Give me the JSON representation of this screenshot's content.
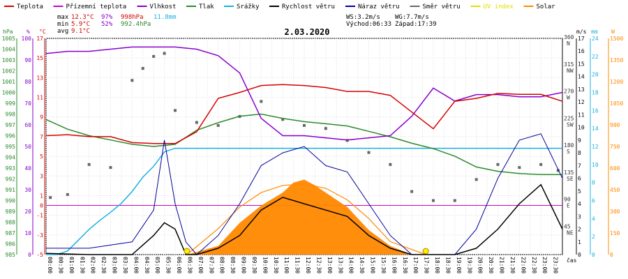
{
  "legend": [
    {
      "label": "Teplota",
      "color": "#d40000"
    },
    {
      "label": "Přízemní teplota",
      "color": "#cc00cc"
    },
    {
      "label": "Vlhkost",
      "color": "#8800cc"
    },
    {
      "label": "Tlak",
      "color": "#2a8a2a"
    },
    {
      "label": "Srážky",
      "color": "#1ab0e0"
    },
    {
      "label": "Rychlost větru",
      "color": "#000000"
    },
    {
      "label": "Náraz větru",
      "color": "#000099"
    },
    {
      "label": "Směr větru",
      "color": "#666666"
    },
    {
      "label": "UV index",
      "color": "#e0e000"
    },
    {
      "label": "Solar",
      "color": "#ff8800"
    }
  ],
  "stats": {
    "max_label": "max",
    "max_temp": "12.3°C",
    "max_hum": "97%",
    "max_press": "998hPa",
    "rain_total": "11.8mm",
    "min_label": "min",
    "min_temp": "5.9°C",
    "min_hum": "52%",
    "min_press": "992.4hPa",
    "avg_label": "avg",
    "avg_temp": "9.1°C"
  },
  "wind": {
    "ws": "WS:3.2m/s",
    "wg": "WG:7.7m/s",
    "sunrise": "Východ:06:33",
    "sunset": "Západ:17:39"
  },
  "chart_data": {
    "type": "line",
    "title": "2.03.2020",
    "xlabel": "čas",
    "time_ticks": [
      "00:00",
      "00:30",
      "01:00",
      "01:30",
      "02:00",
      "02:30",
      "03:00",
      "03:30",
      "04:00",
      "04:30",
      "05:00",
      "05:30",
      "06:00",
      "06:30",
      "07:00",
      "07:30",
      "08:00",
      "08:30",
      "09:00",
      "09:30",
      "10:00",
      "10:30",
      "11:00",
      "11:30",
      "12:00",
      "12:30",
      "13:00",
      "13:30",
      "14:00",
      "14:30",
      "15:00",
      "15:30",
      "16:00",
      "16:30",
      "17:00",
      "17:30",
      "18:00",
      "18:30",
      "19:00",
      "19:30",
      "20:00",
      "20:30",
      "21:00",
      "21:30",
      "22:00",
      "22:30",
      "23:00",
      "23:30"
    ],
    "axes": {
      "pressure": {
        "unit": "hPa",
        "ticks": [
          985,
          986,
          987,
          988,
          989,
          990,
          991,
          992,
          993,
          994,
          995,
          996,
          997,
          998,
          999,
          1000,
          1001,
          1002,
          1003,
          1004,
          1005
        ],
        "color": "#2a8a2a"
      },
      "humidity": {
        "unit": "%",
        "ticks": [
          0,
          10,
          20,
          30,
          40,
          50,
          60,
          70,
          80,
          90,
          100
        ],
        "color": "#8800cc"
      },
      "temperature": {
        "unit": "°C",
        "ticks": [
          -5,
          -3,
          -1,
          0,
          1,
          3,
          5,
          7,
          9,
          11,
          13,
          15,
          17
        ],
        "color": "#d40000"
      },
      "wind_direction": {
        "ticks": [
          "360 N",
          "315 NW",
          "270 W",
          "225 SW",
          "180 S",
          "135 SE",
          "90 E",
          "45 NE"
        ]
      },
      "wind_speed": {
        "unit": "m/s",
        "ticks": [
          0,
          1,
          2,
          3,
          4,
          5,
          6,
          7,
          8,
          9,
          10,
          11,
          12,
          13,
          14,
          15,
          16,
          17
        ]
      },
      "rain": {
        "unit": "mm",
        "ticks": [
          0,
          2,
          4,
          6,
          8,
          10,
          12,
          14,
          16,
          18,
          20,
          22,
          24
        ],
        "color": "#1ab0e0"
      },
      "uv_solar": {
        "unit": "W",
        "ticks": [
          0,
          150,
          300,
          450,
          600,
          750,
          900,
          1050,
          1200,
          1350,
          1500
        ],
        "color": "#ff8800"
      }
    },
    "series": [
      {
        "name": "Teplota",
        "unit": "°C",
        "x": [
          0,
          1,
          2,
          3,
          4,
          5,
          6,
          7,
          8,
          9,
          10,
          11,
          12,
          13,
          14,
          15,
          16,
          17,
          18,
          19,
          20,
          21,
          22,
          23,
          24
        ],
        "values": [
          7.1,
          7.2,
          7.0,
          7.0,
          6.4,
          6.3,
          6.3,
          7.5,
          10.9,
          11.5,
          12.2,
          12.3,
          12.2,
          12.0,
          11.6,
          11.6,
          11.2,
          9.5,
          7.8,
          10.6,
          10.9,
          11.4,
          11.3,
          11.3,
          10.6
        ]
      },
      {
        "name": "Vlhkost",
        "unit": "%",
        "x": [
          0,
          1,
          2,
          3,
          4,
          5,
          6,
          7,
          8,
          9,
          10,
          11,
          12,
          13,
          14,
          15,
          16,
          17,
          18,
          19,
          20,
          21,
          22,
          23,
          24
        ],
        "values": [
          93,
          94,
          94,
          95,
          96,
          96,
          96,
          95,
          92,
          84,
          63,
          55,
          55,
          54,
          53,
          54,
          55,
          64,
          77,
          71,
          74,
          74,
          73,
          73,
          75
        ]
      },
      {
        "name": "Tlak",
        "unit": "hPa",
        "x": [
          0,
          1,
          2,
          3,
          4,
          5,
          6,
          7,
          8,
          9,
          10,
          11,
          12,
          13,
          14,
          15,
          16,
          17,
          18,
          19,
          20,
          21,
          22,
          23,
          24
        ],
        "values": [
          997.5,
          996.6,
          996.0,
          995.6,
          995.2,
          995.0,
          995.2,
          996.5,
          997.2,
          997.8,
          998.0,
          997.6,
          997.3,
          997.1,
          996.9,
          996.4,
          995.9,
          995.3,
          994.8,
          994.1,
          993.1,
          992.7,
          992.5,
          992.4,
          992.4
        ]
      },
      {
        "name": "Srážky",
        "unit": "mm",
        "x": [
          0,
          0.5,
          1,
          1.5,
          2,
          2.5,
          3,
          3.5,
          4,
          4.5,
          5,
          5.5,
          6,
          6.5,
          7,
          8,
          24
        ],
        "values": [
          0,
          0,
          0.4,
          1.6,
          2.8,
          3.8,
          4.7,
          5.7,
          7.0,
          8.6,
          9.8,
          11.4,
          11.8,
          11.8,
          11.8,
          11.8,
          11.8
        ]
      },
      {
        "name": "Rychlost větru",
        "unit": "m/s",
        "x": [
          0,
          2,
          4,
          5,
          5.5,
          6,
          6.5,
          7,
          8,
          9,
          10,
          11,
          12,
          13,
          14,
          15,
          16,
          17,
          18,
          19,
          20,
          21,
          22,
          23,
          24
        ],
        "values": [
          0.1,
          0,
          0,
          1.5,
          2.5,
          2.0,
          0,
          0,
          0.5,
          1.5,
          3.5,
          4.5,
          4.0,
          3.5,
          3.0,
          1.5,
          0.5,
          0,
          0,
          0,
          0.5,
          2.0,
          4.0,
          5.5,
          2.0
        ]
      },
      {
        "name": "Náraz větru",
        "unit": "m/s",
        "x": [
          0,
          2,
          4,
          5,
          5.5,
          6,
          6.5,
          7,
          8,
          9,
          10,
          11,
          12,
          13,
          14,
          15,
          16,
          17,
          18,
          19,
          20,
          21,
          22,
          23,
          24
        ],
        "values": [
          0.5,
          0.5,
          1.0,
          3.5,
          9.0,
          4.0,
          1.0,
          0,
          1.5,
          4.0,
          7.0,
          8.0,
          8.5,
          7.0,
          6.5,
          4.0,
          1.5,
          0,
          0,
          0,
          2.0,
          6.0,
          9.0,
          9.5,
          6.0
        ]
      },
      {
        "name": "Směr větru",
        "unit": "°",
        "x": [
          0.2,
          1,
          2,
          3,
          4,
          4.5,
          5,
          5.5,
          6,
          7,
          8,
          9,
          10,
          11,
          12,
          13,
          14,
          15,
          16,
          17,
          18,
          19,
          20,
          21,
          22,
          23,
          23.8
        ],
        "values": [
          95,
          100,
          150,
          145,
          290,
          310,
          330,
          335,
          240,
          220,
          215,
          230,
          255,
          225,
          215,
          210,
          190,
          170,
          150,
          105,
          90,
          90,
          125,
          150,
          145,
          150,
          140
        ]
      },
      {
        "name": "Solar",
        "unit": "W",
        "x": [
          6.55,
          8,
          9,
          10,
          11,
          12,
          13,
          14,
          15,
          16,
          17.65
        ],
        "values": [
          0,
          180,
          330,
          430,
          480,
          490,
          460,
          380,
          250,
          90,
          0
        ]
      },
      {
        "name": "Solar measured",
        "unit": "W",
        "x": [
          6.55,
          8,
          9,
          10,
          11,
          11.5,
          12,
          12.5,
          13,
          14,
          15,
          16,
          17
        ],
        "values": [
          0,
          60,
          220,
          340,
          430,
          500,
          520,
          480,
          430,
          330,
          170,
          60,
          0
        ]
      }
    ],
    "markers": [
      {
        "name": "sunrise",
        "x": 6.55
      },
      {
        "name": "sunset",
        "x": 17.65
      }
    ]
  }
}
